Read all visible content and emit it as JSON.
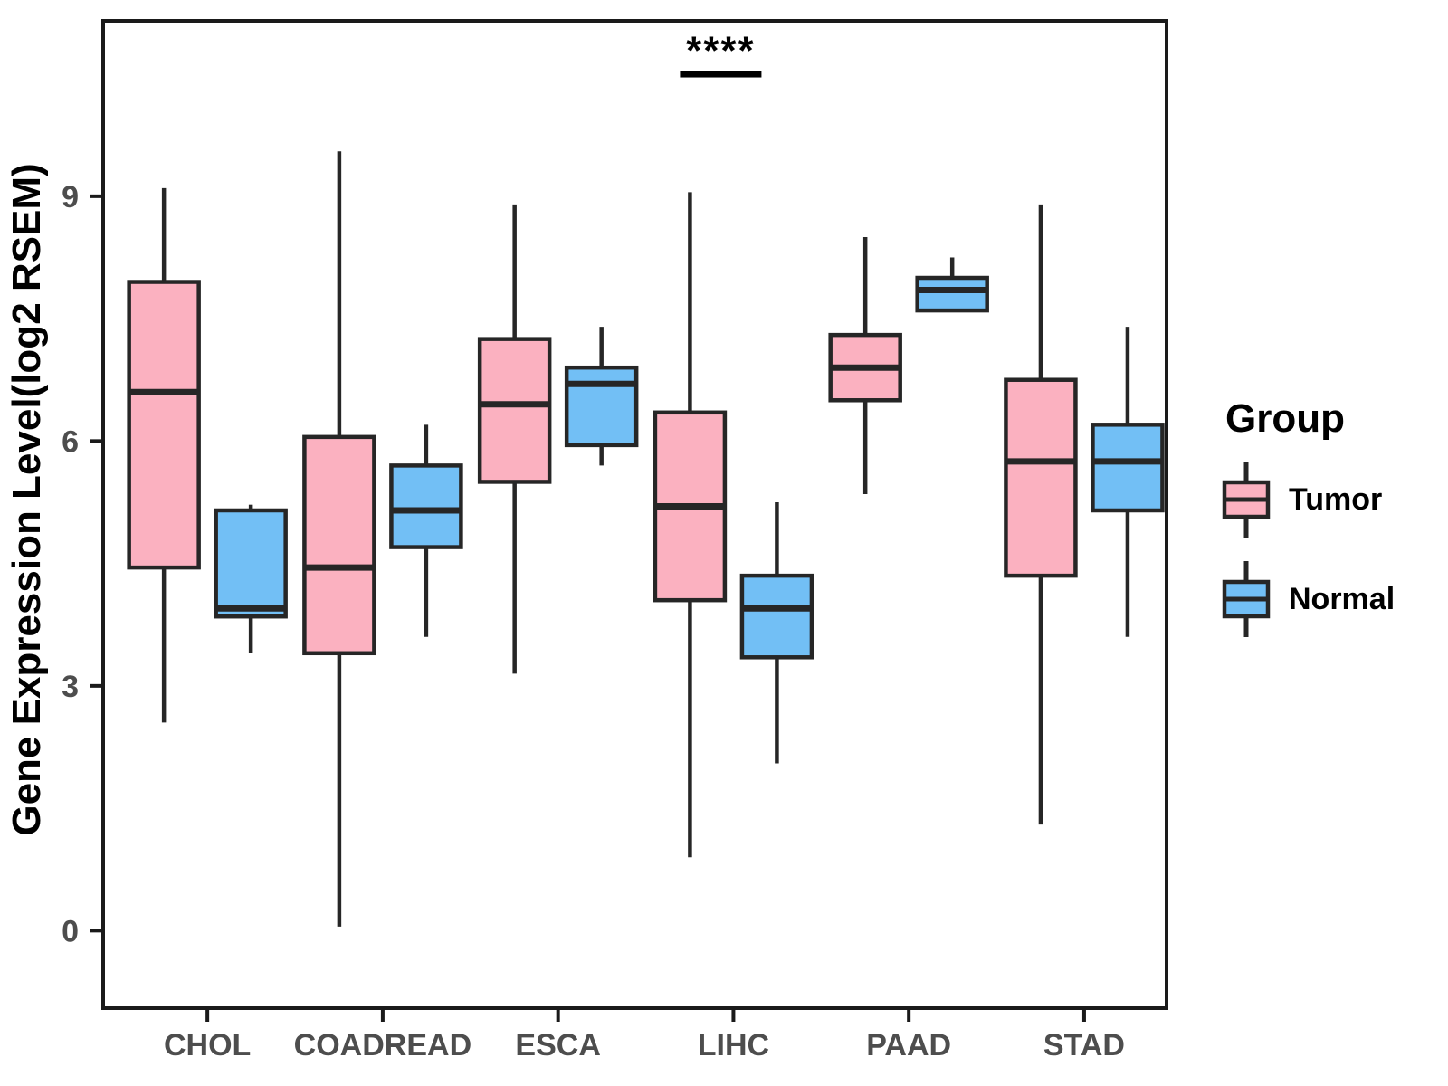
{
  "figure": {
    "background": "#ffffff",
    "border_color": "#1a1a1a",
    "tick_label_color": "#4d4d4d"
  },
  "chart_data": {
    "type": "boxplot",
    "title": "",
    "xlabel": "",
    "ylabel": "Gene Expression Level(log2 RSEM)",
    "categories": [
      "CHOL",
      "COADREAD",
      "ESCA",
      "LIHC",
      "PAAD",
      "STAD"
    ],
    "yticks": [
      0,
      3,
      6,
      9
    ],
    "ylim": [
      -0.95,
      11.15
    ],
    "grid": "off",
    "legend": {
      "title": "Group",
      "position": "right"
    },
    "series": [
      {
        "name": "Tumor",
        "color": "#FBB1C0",
        "boxes": [
          {
            "category": "CHOL",
            "min": 2.55,
            "q1": 4.45,
            "median": 6.6,
            "q3": 7.95,
            "max": 9.1
          },
          {
            "category": "COADREAD",
            "min": 0.05,
            "q1": 3.4,
            "median": 4.45,
            "q3": 6.05,
            "max": 9.55
          },
          {
            "category": "ESCA",
            "min": 3.15,
            "q1": 5.5,
            "median": 6.45,
            "q3": 7.25,
            "max": 8.9
          },
          {
            "category": "LIHC",
            "min": 0.9,
            "q1": 4.05,
            "median": 5.2,
            "q3": 6.35,
            "max": 9.05
          },
          {
            "category": "PAAD",
            "min": 5.35,
            "q1": 6.5,
            "median": 6.9,
            "q3": 7.3,
            "max": 8.5
          },
          {
            "category": "STAD",
            "min": 1.3,
            "q1": 4.35,
            "median": 5.75,
            "q3": 6.75,
            "max": 8.9
          }
        ]
      },
      {
        "name": "Normal",
        "color": "#72BFF5",
        "boxes": [
          {
            "category": "CHOL",
            "min": 3.4,
            "q1": 3.85,
            "median": 3.95,
            "q3": 5.15,
            "max": 5.22
          },
          {
            "category": "COADREAD",
            "min": 3.6,
            "q1": 4.7,
            "median": 5.15,
            "q3": 5.7,
            "max": 6.2
          },
          {
            "category": "ESCA",
            "min": 5.7,
            "q1": 5.95,
            "median": 6.7,
            "q3": 6.9,
            "max": 7.4
          },
          {
            "category": "LIHC",
            "min": 2.05,
            "q1": 3.35,
            "median": 3.95,
            "q3": 4.35,
            "max": 5.25
          },
          {
            "category": "PAAD",
            "min": 7.6,
            "q1": 7.6,
            "median": 7.85,
            "q3": 8.0,
            "max": 8.25
          },
          {
            "category": "STAD",
            "min": 3.6,
            "q1": 5.15,
            "median": 5.75,
            "q3": 6.2,
            "max": 7.4
          }
        ]
      }
    ],
    "annotations": [
      {
        "label": "****",
        "category": "LIHC",
        "y": 10.9,
        "underline": true
      }
    ],
    "box_line_color": "#262626"
  }
}
